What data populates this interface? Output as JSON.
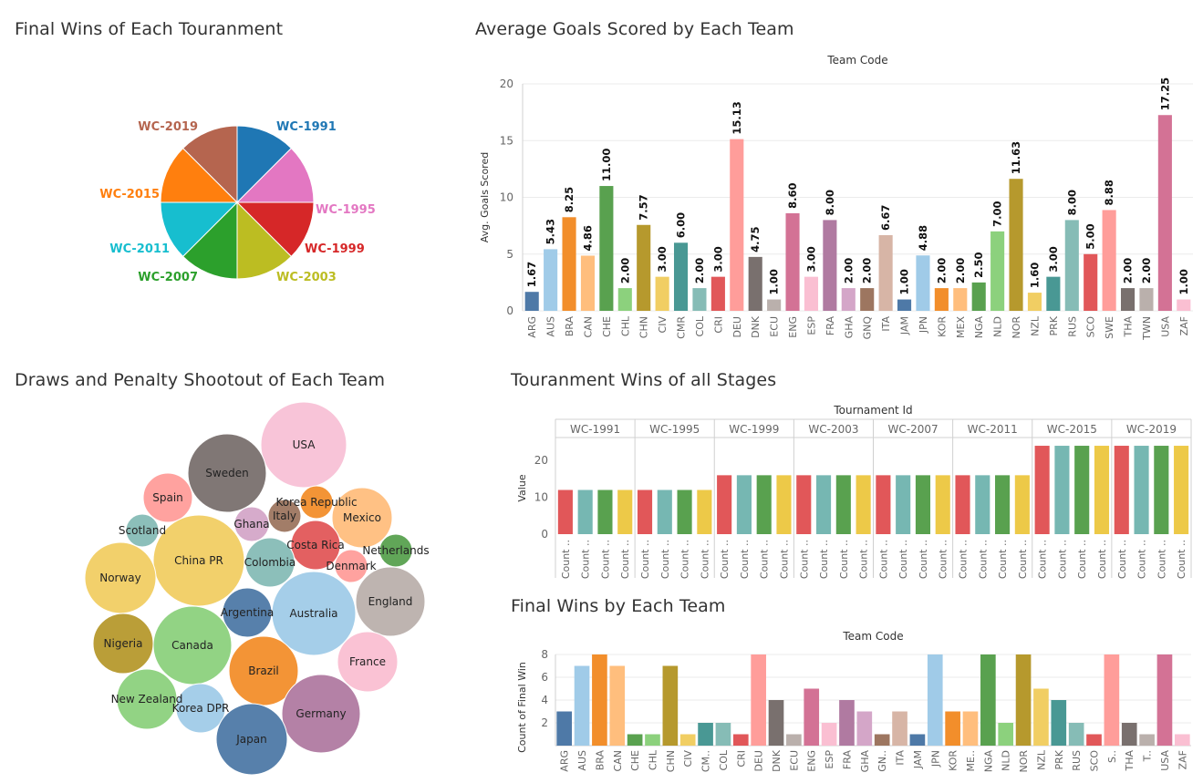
{
  "dashboard": {
    "pie_title": "Final Wins of Each Touranment",
    "goals_title": "Average Goals Scored by Each Team",
    "bubble_title": "Draws and Penalty Shootout of Each Team",
    "stages_title": "Touranment Wins of all Stages",
    "finalwins_title": "Final Wins by Each Team"
  },
  "chart_data": [
    {
      "id": "pie",
      "type": "pie",
      "title": "Final Wins of Each Touranment",
      "slices": [
        {
          "label": "WC-1991",
          "value": 1,
          "color": "#1f77b4"
        },
        {
          "label": "WC-1995",
          "value": 1,
          "color": "#e377c2"
        },
        {
          "label": "WC-1999",
          "value": 1,
          "color": "#d62728"
        },
        {
          "label": "WC-2003",
          "value": 1,
          "color": "#bcbd22"
        },
        {
          "label": "WC-2007",
          "value": 1,
          "color": "#2ca02c"
        },
        {
          "label": "WC-2011",
          "value": 1,
          "color": "#17becf"
        },
        {
          "label": "WC-2015",
          "value": 1,
          "color": "#ff7f0e"
        },
        {
          "label": "WC-2019",
          "value": 1,
          "color": "#b5654f"
        }
      ]
    },
    {
      "id": "goals",
      "type": "bar",
      "title": "Average Goals Scored by Each Team",
      "xlabel": "Team Code",
      "ylabel": "Avg. Goals Scored",
      "ylim": [
        0,
        20
      ],
      "yticks": [
        0,
        5,
        10,
        15,
        20
      ],
      "grid": true,
      "categories": [
        "ARG",
        "AUS",
        "BRA",
        "CAN",
        "CHE",
        "CHL",
        "CHN",
        "CIV",
        "CMR",
        "COL",
        "CRI",
        "DEU",
        "DNK",
        "ECU",
        "ENG",
        "ESP",
        "FRA",
        "GHA",
        "GNQ",
        "ITA",
        "JAM",
        "JPN",
        "KOR",
        "MEX",
        "NGA",
        "NLD",
        "NOR",
        "NZL",
        "PRK",
        "RUS",
        "SCO",
        "SWE",
        "THA",
        "TWN",
        "USA",
        "ZAF"
      ],
      "values": [
        1.67,
        5.43,
        8.25,
        4.86,
        11.0,
        2.0,
        7.57,
        3.0,
        6.0,
        2.0,
        3.0,
        15.13,
        4.75,
        1.0,
        8.6,
        3.0,
        8.0,
        2.0,
        2.0,
        6.67,
        1.0,
        4.88,
        2.0,
        2.0,
        2.5,
        7.0,
        11.63,
        1.6,
        3.0,
        8.0,
        5.0,
        8.88,
        2.0,
        2.0,
        17.25,
        1.0
      ],
      "labels": [
        "1.67",
        "5.43",
        "8.25",
        "4.86",
        "11.00",
        "2.00",
        "7.57",
        "3.00",
        "6.00",
        "2.00",
        "3.00",
        "15.13",
        "4.75",
        "1.00",
        "8.60",
        "3.00",
        "8.00",
        "2.00",
        "2.00",
        "6.67",
        "1.00",
        "4.88",
        "2.00",
        "2.00",
        "2.50",
        "7.00",
        "11.63",
        "1.60",
        "3.00",
        "8.00",
        "5.00",
        "8.88",
        "2.00",
        "2.00",
        "17.25",
        "1.00"
      ],
      "colors": [
        "#4e79a7",
        "#a0cbe8",
        "#f28e2b",
        "#ffbe7d",
        "#59a14f",
        "#8cd17d",
        "#b6992d",
        "#f1ce63",
        "#499894",
        "#86bcb6",
        "#e15759",
        "#ff9d9a",
        "#79706e",
        "#bab0ac",
        "#d37295",
        "#fabfd2",
        "#b07aa1",
        "#d4a6c8",
        "#9d7660",
        "#d7b5a6",
        "#4e79a7",
        "#a0cbe8",
        "#f28e2b",
        "#ffbe7d",
        "#59a14f",
        "#8cd17d",
        "#b6992d",
        "#f1ce63",
        "#499894",
        "#86bcb6",
        "#e15759",
        "#ff9d9a",
        "#79706e",
        "#bab0ac",
        "#d37295",
        "#fabfd2"
      ]
    },
    {
      "id": "bubbles",
      "type": "bubble",
      "title": "Draws and Penalty Shootout of Each Team",
      "bubbles": [
        {
          "label": "USA",
          "color": "#f8c1d6"
        },
        {
          "label": "Sweden",
          "color": "#79706e"
        },
        {
          "label": "Spain",
          "color": "#ff9d9a"
        },
        {
          "label": "Korea Republic",
          "color": "#f28e2b"
        },
        {
          "label": "Ghana",
          "color": "#d4a6c8"
        },
        {
          "label": "Italy",
          "color": "#9d7660"
        },
        {
          "label": "Mexico",
          "color": "#ffbe7d"
        },
        {
          "label": "Scotland",
          "color": "#86bcb6"
        },
        {
          "label": "China PR",
          "color": "#f1ce63"
        },
        {
          "label": "Costa Rica",
          "color": "#e15759"
        },
        {
          "label": "Netherlands",
          "color": "#59a14f"
        },
        {
          "label": "Colombia",
          "color": "#86bcb6"
        },
        {
          "label": "Denmark",
          "color": "#ff9d9a"
        },
        {
          "label": "Norway",
          "color": "#f1ce63"
        },
        {
          "label": "England",
          "color": "#bab0ac"
        },
        {
          "label": "Argentina",
          "color": "#4e79a7"
        },
        {
          "label": "Australia",
          "color": "#a0cbe8"
        },
        {
          "label": "Nigeria",
          "color": "#b6992d"
        },
        {
          "label": "Canada",
          "color": "#8cd17d"
        },
        {
          "label": "France",
          "color": "#fabfd2"
        },
        {
          "label": "Brazil",
          "color": "#f28e2b"
        },
        {
          "label": "New Zealand",
          "color": "#8cd17d"
        },
        {
          "label": "Korea DPR",
          "color": "#a0cbe8"
        },
        {
          "label": "Germany",
          "color": "#b07aa1"
        },
        {
          "label": "Japan",
          "color": "#4e79a7"
        }
      ]
    },
    {
      "id": "stages",
      "type": "bar",
      "title": "Touranment Wins of all Stages",
      "xlabel": "Tournament Id",
      "ylabel": "Value",
      "ylim": [
        0,
        25
      ],
      "yticks": [
        0,
        10,
        20
      ],
      "groups": [
        "WC-1991",
        "WC-1995",
        "WC-1999",
        "WC-2003",
        "WC-2007",
        "WC-2011",
        "WC-2015",
        "WC-2019"
      ],
      "sub_label": "Count ..",
      "series": [
        {
          "color": "#e15759",
          "values": [
            12,
            12,
            16,
            16,
            16,
            16,
            24,
            24
          ]
        },
        {
          "color": "#76b7b2",
          "values": [
            12,
            12,
            16,
            16,
            16,
            16,
            24,
            24
          ]
        },
        {
          "color": "#59a14f",
          "values": [
            12,
            12,
            16,
            16,
            16,
            16,
            24,
            24
          ]
        },
        {
          "color": "#edc948",
          "values": [
            12,
            12,
            16,
            16,
            16,
            16,
            24,
            24
          ]
        }
      ]
    },
    {
      "id": "finalwins",
      "type": "bar",
      "title": "Final Wins by Each Team",
      "xlabel": "Team Code",
      "ylabel": "Count of Final Win",
      "ylim": [
        0,
        8
      ],
      "yticks": [
        2,
        4,
        6,
        8
      ],
      "grid": true,
      "categories": [
        "ARG",
        "AUS",
        "BRA",
        "CAN",
        "CHE",
        "CHL",
        "CHN",
        "CIV",
        "CM..",
        "COL",
        "CRI",
        "DEU",
        "DNK",
        "ECU",
        "ENG",
        "ESP",
        "FRA",
        "GHA",
        "GN..",
        "ITA",
        "JAM",
        "JPN",
        "KOR",
        "ME..",
        "NGA",
        "NLD",
        "NOR",
        "NZL",
        "PRK",
        "RUS",
        "SCO",
        "S..",
        "THA",
        "T..",
        "USA",
        "ZAF"
      ],
      "values": [
        3,
        7,
        8,
        7,
        1,
        1,
        7,
        1,
        2,
        2,
        1,
        8,
        4,
        1,
        5,
        2,
        4,
        3,
        1,
        3,
        1,
        8,
        3,
        3,
        8,
        2,
        8,
        5,
        4,
        2,
        1,
        8,
        2,
        1,
        8,
        1
      ],
      "colors": [
        "#4e79a7",
        "#a0cbe8",
        "#f28e2b",
        "#ffbe7d",
        "#59a14f",
        "#8cd17d",
        "#b6992d",
        "#f1ce63",
        "#499894",
        "#86bcb6",
        "#e15759",
        "#ff9d9a",
        "#79706e",
        "#bab0ac",
        "#d37295",
        "#fabfd2",
        "#b07aa1",
        "#d4a6c8",
        "#9d7660",
        "#d7b5a6",
        "#4e79a7",
        "#a0cbe8",
        "#f28e2b",
        "#ffbe7d",
        "#59a14f",
        "#8cd17d",
        "#b6992d",
        "#f1ce63",
        "#499894",
        "#86bcb6",
        "#e15759",
        "#ff9d9a",
        "#79706e",
        "#bab0ac",
        "#d37295",
        "#fabfd2"
      ]
    }
  ]
}
